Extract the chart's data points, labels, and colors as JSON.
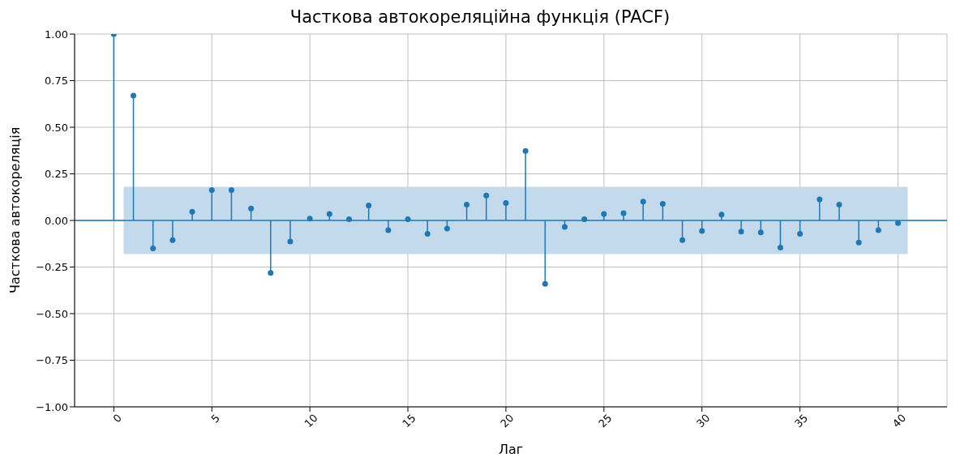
{
  "chart_data": {
    "type": "lollipop",
    "title": "Часткова автокореляційна функція (PACF)",
    "xlabel": "Лаг",
    "ylabel": "Часткова автокореляція",
    "x": [
      0,
      1,
      2,
      3,
      4,
      5,
      6,
      7,
      8,
      9,
      10,
      11,
      12,
      13,
      14,
      15,
      16,
      17,
      18,
      19,
      20,
      21,
      22,
      23,
      24,
      25,
      26,
      27,
      28,
      29,
      30,
      31,
      32,
      33,
      34,
      35,
      36,
      37,
      38,
      39,
      40
    ],
    "series": [
      {
        "color": "#1f77b4",
        "values": [
          1.0,
          0.67,
          -0.15,
          -0.105,
          0.047,
          0.163,
          0.163,
          0.064,
          -0.282,
          -0.113,
          0.01,
          0.035,
          0.006,
          0.08,
          -0.052,
          0.006,
          -0.072,
          -0.043,
          0.085,
          0.134,
          0.093,
          0.373,
          -0.34,
          -0.035,
          0.006,
          0.035,
          0.039,
          0.101,
          0.089,
          -0.105,
          -0.056,
          0.031,
          -0.06,
          -0.064,
          -0.146,
          -0.072,
          0.113,
          0.085,
          -0.118,
          -0.052,
          -0.014
        ]
      }
    ],
    "xlim": [
      -2,
      42.5
    ],
    "xticks": [
      0,
      5,
      10,
      15,
      20,
      25,
      30,
      35,
      40
    ],
    "ylim": [
      -1,
      1
    ],
    "yticks": [
      {
        "value": -1,
        "label": "−1.00"
      },
      {
        "value": -0.75,
        "label": "−0.75"
      },
      {
        "value": -0.5,
        "label": "−0.50"
      },
      {
        "value": -0.25,
        "label": "−0.25"
      },
      {
        "value": 0,
        "label": "0.00"
      },
      {
        "value": 0.25,
        "label": "0.25"
      },
      {
        "value": 0.5,
        "label": "0.50"
      },
      {
        "value": 0.75,
        "label": "0.75"
      },
      {
        "value": 1,
        "label": "1.00"
      }
    ],
    "bands": [
      {
        "axis": "y",
        "from": -0.18,
        "to": 0.18,
        "color": "#c3d9ec"
      }
    ],
    "ref_lines": [
      {
        "axis": "y",
        "value": 0,
        "color": "#1f77b4"
      }
    ],
    "grid": true,
    "marker": "circle"
  }
}
